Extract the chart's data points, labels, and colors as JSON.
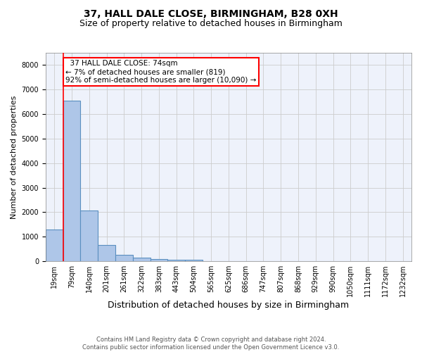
{
  "title_line1": "37, HALL DALE CLOSE, BIRMINGHAM, B28 0XH",
  "title_line2": "Size of property relative to detached houses in Birmingham",
  "xlabel": "Distribution of detached houses by size in Birmingham",
  "ylabel": "Number of detached properties",
  "footer_line1": "Contains HM Land Registry data © Crown copyright and database right 2024.",
  "footer_line2": "Contains public sector information licensed under the Open Government Licence v3.0.",
  "bin_labels": [
    "19sqm",
    "79sqm",
    "140sqm",
    "201sqm",
    "261sqm",
    "322sqm",
    "383sqm",
    "443sqm",
    "504sqm",
    "565sqm",
    "625sqm",
    "686sqm",
    "747sqm",
    "807sqm",
    "868sqm",
    "929sqm",
    "990sqm",
    "1050sqm",
    "1111sqm",
    "1172sqm",
    "1232sqm"
  ],
  "bar_values": [
    1300,
    6550,
    2080,
    650,
    255,
    135,
    95,
    65,
    65,
    0,
    0,
    0,
    0,
    0,
    0,
    0,
    0,
    0,
    0,
    0,
    0
  ],
  "bar_color": "#aec6e8",
  "bar_edge_color": "#5a8fc0",
  "property_line_x": 1.0,
  "annotation_text": "  37 HALL DALE CLOSE: 74sqm\n← 7% of detached houses are smaller (819)\n92% of semi-detached houses are larger (10,090) →",
  "annotation_box_color": "white",
  "annotation_box_edge_color": "red",
  "property_line_color": "red",
  "ylim": [
    0,
    8500
  ],
  "yticks": [
    0,
    1000,
    2000,
    3000,
    4000,
    5000,
    6000,
    7000,
    8000
  ],
  "grid_color": "#cccccc",
  "bg_color": "#eef2fb",
  "title_fontsize": 10,
  "subtitle_fontsize": 9,
  "xlabel_fontsize": 9,
  "ylabel_fontsize": 8,
  "tick_fontsize": 7,
  "annotation_fontsize": 7.5,
  "footer_fontsize": 6
}
